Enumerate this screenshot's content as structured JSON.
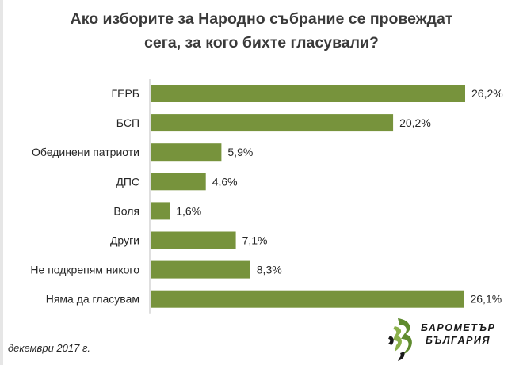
{
  "title_line1": "Ако изборите за Народно  събрание се провеждат",
  "title_line2": "сега, за кого  бихте гласували?",
  "chart_data": {
    "type": "bar",
    "orientation": "horizontal",
    "categories": [
      "ГЕРБ",
      "БСП",
      "Обединени патриоти",
      "ДПС",
      "Воля",
      "Други",
      "Не подкрепям никого",
      "Няма да гласувам"
    ],
    "values": [
      26.2,
      20.2,
      5.9,
      4.6,
      1.6,
      7.1,
      8.3,
      26.1
    ],
    "value_labels": [
      "26,2%",
      "20,2%",
      "5,9%",
      "4,6%",
      "1,6%",
      "7,1%",
      "8,3%",
      "26,1%"
    ],
    "unit": "%",
    "title": "Ако изборите за Народно  събрание се провеждат сега, за кого  бихте гласували?",
    "xlabel": "",
    "ylabel": "",
    "xlim": [
      0,
      26.2
    ],
    "grid": false,
    "bar_color": "#77933c"
  },
  "footnote": "декември 2017 г.",
  "logo": {
    "line1": "БАРОМЕТЪР",
    "line2": "БЪЛГАРИЯ",
    "colors": {
      "green": "#5f8b2f",
      "light_green": "#8ab04a",
      "dark": "#1a1a1a"
    }
  }
}
